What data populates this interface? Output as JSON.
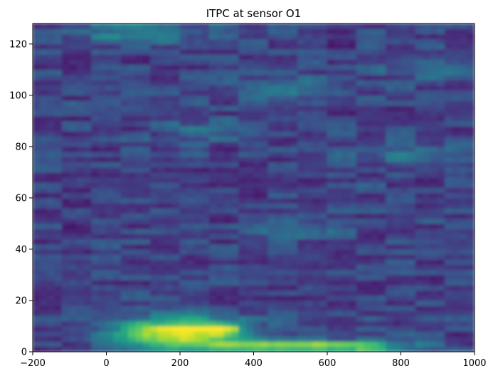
{
  "chart_data": {
    "type": "heatmap",
    "title": "ITPC at sensor O1",
    "xlabel": "",
    "ylabel": "",
    "xlim": [
      -200,
      1000
    ],
    "ylim": [
      0,
      128
    ],
    "x_ticks": [
      -200,
      0,
      200,
      400,
      600,
      800,
      1000
    ],
    "y_ticks": [
      0,
      20,
      40,
      60,
      80,
      100,
      120
    ],
    "colormap": "viridis",
    "colormap_stops": [
      "#440154",
      "#472d7b",
      "#3b528b",
      "#2c728e",
      "#21918c",
      "#28ae80",
      "#5ec962",
      "#addc30",
      "#fde725"
    ],
    "color_range": [
      0,
      1
    ],
    "background_level": 0.2,
    "features": [
      {
        "x": 180,
        "y": 8,
        "sx": 110,
        "sy": 3.5,
        "value": 0.85
      },
      {
        "x": 320,
        "y": 9,
        "sx": 60,
        "sy": 2.5,
        "value": 0.35
      },
      {
        "x": 480,
        "y": 2,
        "sx": 200,
        "sy": 1.8,
        "value": 0.6
      },
      {
        "x": 700,
        "y": 2,
        "sx": 90,
        "sy": 1.5,
        "value": 0.25
      },
      {
        "x": 100,
        "y": 125,
        "sx": 140,
        "sy": 3,
        "value": 0.25
      },
      {
        "x": 500,
        "y": 103,
        "sx": 120,
        "sy": 3,
        "value": 0.22
      },
      {
        "x": 920,
        "y": 110,
        "sx": 100,
        "sy": 3,
        "value": 0.2
      },
      {
        "x": 500,
        "y": 48,
        "sx": 80,
        "sy": 2,
        "value": 0.2
      },
      {
        "x": 270,
        "y": 86,
        "sx": 80,
        "sy": 3,
        "value": 0.18
      },
      {
        "x": 800,
        "y": 78,
        "sx": 100,
        "sy": 3,
        "value": 0.15
      }
    ]
  }
}
